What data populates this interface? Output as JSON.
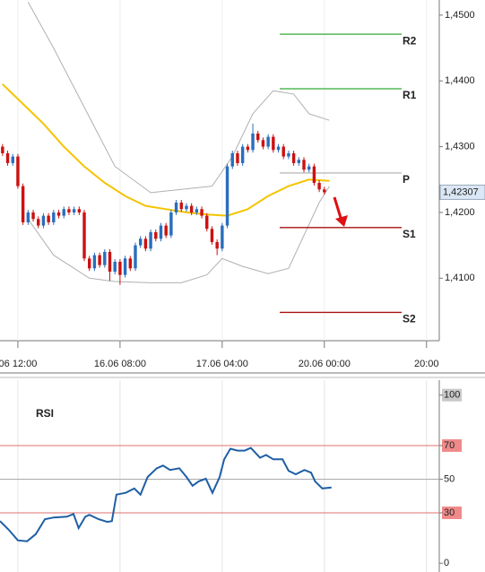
{
  "chart_data": [
    {
      "type": "candlestick",
      "up_color": "#2a6ebd",
      "down_color": "#cc1111",
      "x": [
        -3,
        -2,
        -1,
        0,
        1,
        2,
        3,
        4,
        5,
        6,
        7,
        8,
        9,
        10,
        11,
        12,
        13,
        14,
        15,
        16,
        17,
        18,
        19,
        20,
        21,
        22,
        23,
        24,
        25,
        26,
        27,
        28,
        29,
        30,
        31,
        32,
        33,
        34,
        35,
        36,
        37,
        38,
        39,
        40,
        41,
        42,
        43,
        44,
        45,
        46,
        47,
        48,
        49,
        50,
        51,
        52,
        53,
        54,
        55,
        56,
        57,
        58,
        59,
        60
      ],
      "open": [
        1.43,
        1.429,
        1.4275,
        1.4285,
        1.424,
        1.4185,
        1.42,
        1.419,
        1.418,
        1.4195,
        1.4185,
        1.42,
        1.4195,
        1.4205,
        1.42,
        1.4205,
        1.42,
        1.413,
        1.4115,
        1.4135,
        1.412,
        1.414,
        1.411,
        1.4125,
        1.4105,
        1.413,
        1.4115,
        1.415,
        1.416,
        1.4145,
        1.417,
        1.416,
        1.418,
        1.4165,
        1.42,
        1.4215,
        1.4205,
        1.421,
        1.42,
        1.4205,
        1.4195,
        1.4175,
        1.4155,
        1.4145,
        1.418,
        1.427,
        1.429,
        1.4275,
        1.43,
        1.4295,
        1.432,
        1.431,
        1.43,
        1.4315,
        1.4295,
        1.43,
        1.4285,
        1.429,
        1.4275,
        1.428,
        1.4265,
        1.427,
        1.4245,
        1.4235
      ],
      "high": [
        1.4304,
        1.4294,
        1.4289,
        1.4289,
        1.4244,
        1.4204,
        1.4204,
        1.4194,
        1.4199,
        1.4199,
        1.4204,
        1.4204,
        1.4209,
        1.4209,
        1.4209,
        1.4209,
        1.4204,
        1.4134,
        1.4139,
        1.4139,
        1.4144,
        1.4144,
        1.4129,
        1.4129,
        1.4134,
        1.4134,
        1.4154,
        1.4164,
        1.4164,
        1.4174,
        1.4174,
        1.4184,
        1.4184,
        1.4204,
        1.4219,
        1.4219,
        1.4214,
        1.4214,
        1.4209,
        1.4209,
        1.4199,
        1.4179,
        1.4159,
        1.4184,
        1.4274,
        1.4294,
        1.4294,
        1.4304,
        1.4304,
        1.4335,
        1.4324,
        1.4314,
        1.4319,
        1.4319,
        1.4304,
        1.4304,
        1.4294,
        1.4294,
        1.4284,
        1.4284,
        1.4274,
        1.4274,
        1.4249,
        1.4239
      ],
      "low": [
        1.4286,
        1.4271,
        1.4271,
        1.4236,
        1.4181,
        1.4181,
        1.4186,
        1.4176,
        1.4176,
        1.4181,
        1.4181,
        1.4191,
        1.4191,
        1.4196,
        1.4196,
        1.4196,
        1.4126,
        1.4111,
        1.4111,
        1.4116,
        1.4116,
        1.4096,
        1.4106,
        1.409,
        1.4101,
        1.4111,
        1.4111,
        1.4146,
        1.4141,
        1.4141,
        1.4156,
        1.4156,
        1.4161,
        1.4161,
        1.4196,
        1.4201,
        1.4201,
        1.4196,
        1.4196,
        1.4191,
        1.4171,
        1.4151,
        1.4135,
        1.4141,
        1.4176,
        1.4266,
        1.4271,
        1.4271,
        1.4291,
        1.4291,
        1.4306,
        1.4296,
        1.4296,
        1.4291,
        1.4291,
        1.4281,
        1.4281,
        1.4271,
        1.4271,
        1.4261,
        1.4261,
        1.4241,
        1.4231,
        1.4227
      ],
      "close": [
        1.429,
        1.4275,
        1.4285,
        1.424,
        1.4185,
        1.42,
        1.419,
        1.418,
        1.4195,
        1.4185,
        1.42,
        1.4195,
        1.4205,
        1.42,
        1.4205,
        1.42,
        1.413,
        1.4115,
        1.4135,
        1.412,
        1.414,
        1.411,
        1.4125,
        1.4105,
        1.413,
        1.4115,
        1.415,
        1.416,
        1.4145,
        1.417,
        1.416,
        1.418,
        1.4165,
        1.42,
        1.4215,
        1.4205,
        1.421,
        1.42,
        1.4205,
        1.4195,
        1.4175,
        1.4155,
        1.4145,
        1.418,
        1.427,
        1.429,
        1.4275,
        1.43,
        1.4295,
        1.432,
        1.431,
        1.43,
        1.4315,
        1.4295,
        1.43,
        1.4285,
        1.429,
        1.4275,
        1.428,
        1.4265,
        1.427,
        1.4245,
        1.4235,
        1.42307
      ],
      "overlays": [
        {
          "color": "#f5c400",
          "width": 2,
          "x": [
            -3,
            1,
            5,
            9,
            13,
            17,
            21,
            25,
            29,
            33,
            37,
            41,
            45,
            49,
            53,
            57,
            61
          ],
          "values": [
            1.4395,
            1.4365,
            1.4335,
            1.43,
            1.427,
            1.4245,
            1.4225,
            1.421,
            1.4205,
            1.42,
            1.4197,
            1.4195,
            1.4205,
            1.4225,
            1.424,
            1.425,
            1.4248
          ]
        },
        {
          "color": "#b0b0b0",
          "width": 1,
          "x": [
            2,
            7,
            14,
            19,
            26,
            32,
            38,
            42,
            46,
            50,
            54,
            57,
            61
          ],
          "values": [
            1.452,
            1.445,
            1.4345,
            1.427,
            1.423,
            1.4235,
            1.424,
            1.4285,
            1.435,
            1.4385,
            1.438,
            1.435,
            1.434
          ]
        },
        {
          "color": "#b0b0b0",
          "width": 1,
          "x": [
            2,
            7,
            14,
            19,
            26,
            32,
            37,
            40,
            44,
            49,
            53,
            56,
            59,
            61
          ],
          "values": [
            1.419,
            1.4135,
            1.41,
            1.4095,
            1.4093,
            1.4093,
            1.4105,
            1.413,
            1.4118,
            1.4107,
            1.4115,
            1.4165,
            1.4215,
            1.424
          ]
        }
      ],
      "pivots": [
        {
          "label": "R2",
          "value": 1.4471,
          "color": "#33aa33"
        },
        {
          "label": "R1",
          "value": 1.4388,
          "color": "#33aa33"
        },
        {
          "label": "P",
          "value": 1.426,
          "color": "#bbbbbb"
        },
        {
          "label": "S1",
          "value": 1.4177,
          "color": "#aa1111"
        },
        {
          "label": "S2",
          "value": 1.4048,
          "color": "#aa1111"
        }
      ],
      "last_price": {
        "value": 1.42307,
        "label": "1,42307"
      },
      "xlim": [
        -3.5,
        82.5
      ],
      "xticks": [
        {
          "value": 0,
          "label": "06 12:00"
        },
        {
          "value": 20,
          "label": "16.06 08:00"
        },
        {
          "value": 40,
          "label": "17.06 04:00"
        },
        {
          "value": 60,
          "label": "20.06 00:00"
        },
        {
          "value": 80,
          "label": "20:00"
        }
      ],
      "ylim": [
        1.4005,
        1.4523
      ],
      "yticks": [
        {
          "value": 1.41,
          "label": "1,4100"
        },
        {
          "value": 1.42,
          "label": "1,4200"
        },
        {
          "value": 1.43,
          "label": "1,4300"
        },
        {
          "value": 1.44,
          "label": "1,4400"
        },
        {
          "value": 1.45,
          "label": "1,4500"
        }
      ]
    },
    {
      "type": "line",
      "title": "RSI",
      "series": [
        {
          "color": "#1f5fa5",
          "x": [
            -3.5,
            -1.8,
            0,
            1.8,
            3.5,
            5.3,
            7,
            9.6,
            10.9,
            11.9,
            13.2,
            14,
            15.8,
            17.5,
            18.4,
            19.3,
            21.1,
            22.8,
            24,
            25.4,
            27.2,
            28.4,
            29.8,
            31.6,
            33,
            34.2,
            35.4,
            36.8,
            38.1,
            39.5,
            40.4,
            41.6,
            43,
            44.4,
            45.6,
            47.4,
            48.6,
            50,
            51.8,
            53,
            54.4,
            56.1,
            57.4,
            58.2,
            59.6,
            61.4
          ],
          "values": [
            25.1,
            19.9,
            13.6,
            13.1,
            17.3,
            26.2,
            27.2,
            27.7,
            29.3,
            20.9,
            27.7,
            28.8,
            26.2,
            24.6,
            25.1,
            40.8,
            41.9,
            44.5,
            40.8,
            51.3,
            56.5,
            58.1,
            55.5,
            56.5,
            51.3,
            46.1,
            48.7,
            50.3,
            41.9,
            51.3,
            61.8,
            68.1,
            67.0,
            67.0,
            68.6,
            62.8,
            64.4,
            61.8,
            61.8,
            55.0,
            52.9,
            55.5,
            53.9,
            48.7,
            44.5,
            45.0
          ]
        }
      ],
      "levels": [
        70,
        50,
        30
      ],
      "level_colors": [
        "#e07070",
        "#aaaaaa",
        "#e07070"
      ],
      "xlim": [
        -3.5,
        82.5
      ],
      "ylim": [
        -5.2,
        108.9
      ],
      "yticks": [
        100,
        70,
        50,
        30,
        0
      ],
      "ytick_backgrounds": [
        "#c8c8c8",
        "#f08a8a",
        null,
        "#f08a8a",
        null
      ]
    }
  ]
}
